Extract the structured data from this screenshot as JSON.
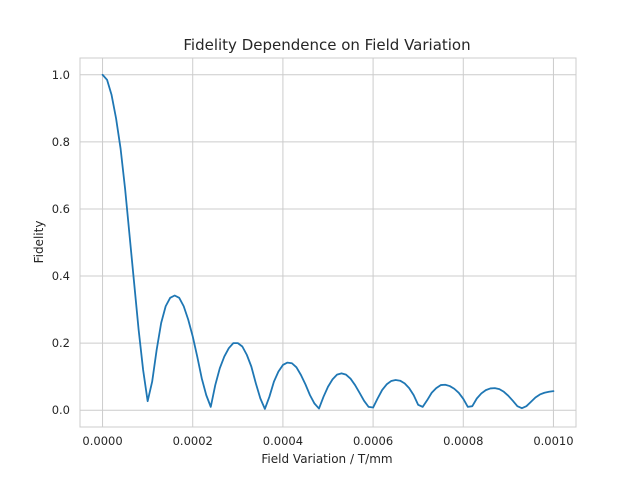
{
  "chart_data": {
    "type": "line",
    "title": "Fidelity Dependence on Field Variation",
    "xlabel": "Field Variation / T/mm",
    "ylabel": "Fidelity",
    "xlim": [
      -5e-05,
      0.00105
    ],
    "ylim": [
      -0.05,
      1.05
    ],
    "xticks": [
      0.0,
      0.0002,
      0.0004,
      0.0006,
      0.0008,
      0.001
    ],
    "xtick_labels": [
      "0.0000",
      "0.0002",
      "0.0004",
      "0.0006",
      "0.0008",
      "0.0010"
    ],
    "yticks": [
      0.0,
      0.2,
      0.4,
      0.6,
      0.8,
      1.0
    ],
    "ytick_labels": [
      "0.0",
      "0.2",
      "0.4",
      "0.6",
      "0.8",
      "1.0"
    ],
    "grid": true,
    "legend": "none",
    "colors": {
      "series": "#1f77b4",
      "grid": "#cccccc",
      "text": "#262626"
    },
    "series": [
      {
        "x": [
          0.0,
          1e-05,
          2e-05,
          3e-05,
          4e-05,
          5e-05,
          6e-05,
          7e-05,
          8e-05,
          9e-05,
          0.0001,
          0.00011,
          0.00012,
          0.00013,
          0.00014,
          0.00015,
          0.00016,
          0.00017,
          0.00018,
          0.00019,
          0.0002,
          0.00021,
          0.00022,
          0.00023,
          0.00024,
          0.00025,
          0.00026,
          0.00027,
          0.00028,
          0.00029,
          0.0003,
          0.00031,
          0.00032,
          0.00033,
          0.00034,
          0.00035,
          0.00036,
          0.00037,
          0.00038,
          0.00039,
          0.0004,
          0.00041,
          0.00042,
          0.00043,
          0.00044,
          0.00045,
          0.00046,
          0.00047,
          0.00048,
          0.00049,
          0.0005,
          0.00051,
          0.00052,
          0.00053,
          0.00054,
          0.00055,
          0.00056,
          0.00057,
          0.00058,
          0.00059,
          0.0006,
          0.00061,
          0.00062,
          0.00063,
          0.00064,
          0.00065,
          0.00066,
          0.00067,
          0.00068,
          0.00069,
          0.0007,
          0.00071,
          0.00072,
          0.00073,
          0.00074,
          0.00075,
          0.00076,
          0.00077,
          0.00078,
          0.00079,
          0.0008,
          0.00081,
          0.00082,
          0.00083,
          0.00084,
          0.00085,
          0.00086,
          0.00087,
          0.00088,
          0.00089,
          0.0009,
          0.00091,
          0.00092,
          0.00093,
          0.00094,
          0.00095,
          0.00096,
          0.00097,
          0.00098,
          0.00099,
          0.001
        ],
        "y": [
          1.0,
          0.985,
          0.94,
          0.87,
          0.78,
          0.66,
          0.52,
          0.38,
          0.24,
          0.12,
          0.027,
          0.085,
          0.18,
          0.26,
          0.31,
          0.335,
          0.342,
          0.335,
          0.31,
          0.27,
          0.22,
          0.16,
          0.095,
          0.045,
          0.01,
          0.075,
          0.125,
          0.16,
          0.185,
          0.2,
          0.2,
          0.19,
          0.165,
          0.13,
          0.08,
          0.035,
          0.004,
          0.04,
          0.085,
          0.115,
          0.135,
          0.142,
          0.14,
          0.128,
          0.105,
          0.077,
          0.045,
          0.02,
          0.005,
          0.04,
          0.07,
          0.092,
          0.106,
          0.11,
          0.106,
          0.094,
          0.075,
          0.052,
          0.028,
          0.01,
          0.008,
          0.035,
          0.06,
          0.077,
          0.087,
          0.09,
          0.088,
          0.08,
          0.066,
          0.045,
          0.016,
          0.01,
          0.03,
          0.052,
          0.066,
          0.075,
          0.076,
          0.072,
          0.064,
          0.052,
          0.034,
          0.01,
          0.012,
          0.035,
          0.05,
          0.06,
          0.065,
          0.066,
          0.063,
          0.055,
          0.043,
          0.028,
          0.012,
          0.006,
          0.012,
          0.025,
          0.038,
          0.047,
          0.052,
          0.055,
          0.057
        ]
      }
    ]
  }
}
